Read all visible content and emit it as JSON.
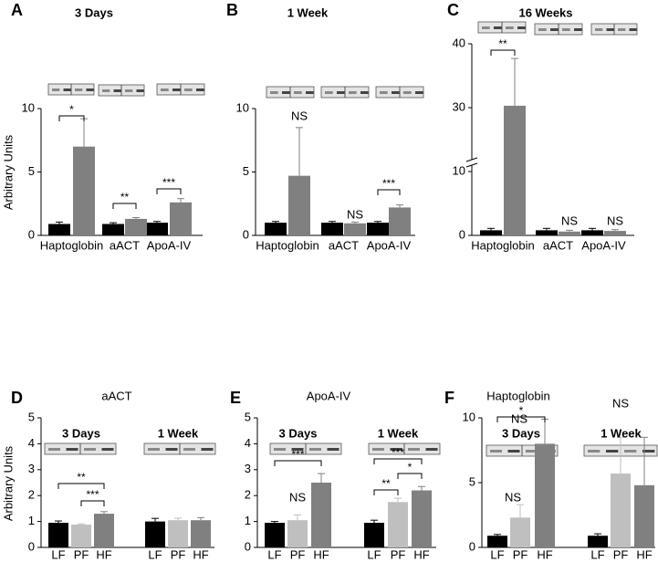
{
  "chart_data": [
    {
      "type": "bar",
      "panel": "A",
      "title": "3 Days",
      "ylabel": "Arbitrary Units",
      "categories": [
        "Haptoglobin",
        "aACT",
        "ApoA-IV"
      ],
      "series": [
        {
          "color": "#000000",
          "values": [
            0.9,
            0.9,
            1.0
          ],
          "errors": [
            0.15,
            0.1,
            0.1
          ]
        },
        {
          "color": "#808080",
          "values": [
            7.0,
            1.3,
            2.6
          ],
          "errors": [
            2.2,
            0.1,
            0.3
          ]
        }
      ],
      "ylim": [
        0,
        10
      ],
      "yticks": [
        0,
        5,
        10
      ],
      "annotations": [
        "*",
        "**",
        "***"
      ]
    },
    {
      "type": "bar",
      "panel": "B",
      "title": "1 Week",
      "categories": [
        "Haptoglobin",
        "aACT",
        "ApoA-IV"
      ],
      "series": [
        {
          "color": "#000000",
          "values": [
            1.0,
            1.0,
            1.0
          ],
          "errors": [
            0.1,
            0.1,
            0.1
          ]
        },
        {
          "color": "#808080",
          "values": [
            4.7,
            0.95,
            2.2
          ],
          "errors": [
            3.8,
            0.1,
            0.2
          ]
        }
      ],
      "ylim": [
        0,
        10
      ],
      "yticks": [
        0,
        5,
        10
      ],
      "annotations": [
        "NS",
        "NS",
        "***"
      ]
    },
    {
      "type": "bar",
      "panel": "C",
      "title": "16 Weeks",
      "categories": [
        "Haptoglobin",
        "aACT",
        "ApoA-IV"
      ],
      "series": [
        {
          "color": "#000000",
          "values": [
            0.8,
            0.8,
            0.8
          ],
          "errors": [
            0.3,
            0.3,
            0.3
          ]
        },
        {
          "color": "#808080",
          "values": [
            30.3,
            0.6,
            0.7
          ],
          "errors": [
            7.4,
            0.2,
            0.2
          ]
        }
      ],
      "ylim": [
        0,
        40
      ],
      "yticks": [
        0,
        10,
        30,
        40
      ],
      "axis_break": true,
      "annotations": [
        "**",
        "NS",
        "NS"
      ]
    },
    {
      "type": "bar",
      "panel": "D",
      "title": "aACT",
      "ylabel": "Arbitrary Units",
      "categories": [
        "3 Days",
        "1 Week"
      ],
      "series": [
        {
          "name": "LF",
          "color": "#000000",
          "values": [
            0.95,
            1.0
          ],
          "errors": [
            0.07,
            0.12
          ]
        },
        {
          "name": "PF",
          "color": "#bfbfbf",
          "values": [
            0.88,
            1.05
          ],
          "errors": [
            0.03,
            0.08
          ]
        },
        {
          "name": "HF",
          "color": "#808080",
          "values": [
            1.3,
            1.05
          ],
          "errors": [
            0.08,
            0.1
          ]
        }
      ],
      "ylim": [
        0,
        5
      ],
      "yticks": [
        0,
        1,
        2,
        3,
        4,
        5
      ],
      "annotations": [
        "**",
        "***"
      ]
    },
    {
      "type": "bar",
      "panel": "E",
      "title": "ApoA-IV",
      "categories": [
        "3 Days",
        "1 Week"
      ],
      "series": [
        {
          "name": "LF",
          "color": "#000000",
          "values": [
            0.95,
            0.95
          ],
          "errors": [
            0.05,
            0.1
          ]
        },
        {
          "name": "PF",
          "color": "#bfbfbf",
          "values": [
            1.05,
            1.75
          ],
          "errors": [
            0.2,
            0.15
          ]
        },
        {
          "name": "HF",
          "color": "#808080",
          "values": [
            2.5,
            2.2
          ],
          "errors": [
            0.35,
            0.15
          ]
        }
      ],
      "ylim": [
        0,
        5
      ],
      "yticks": [
        0,
        1,
        2,
        3,
        4,
        5
      ],
      "annotations": [
        "NS",
        "***",
        "**",
        "*",
        "***"
      ]
    },
    {
      "type": "bar",
      "panel": "F",
      "title": "Haptoglobin",
      "categories": [
        "3 Days",
        "1 Week"
      ],
      "series": [
        {
          "name": "LF",
          "color": "#000000",
          "values": [
            0.9,
            0.9
          ],
          "errors": [
            0.1,
            0.15
          ]
        },
        {
          "name": "PF",
          "color": "#bfbfbf",
          "values": [
            2.3,
            5.7
          ],
          "errors": [
            1.0,
            2.8
          ]
        },
        {
          "name": "HF",
          "color": "#808080",
          "values": [
            8.0,
            4.8
          ],
          "errors": [
            1.9,
            3.7
          ]
        }
      ],
      "ylim": [
        0,
        10
      ],
      "yticks": [
        0,
        5,
        10
      ],
      "annotations": [
        "NS",
        "NS",
        "*",
        "NS"
      ]
    }
  ]
}
